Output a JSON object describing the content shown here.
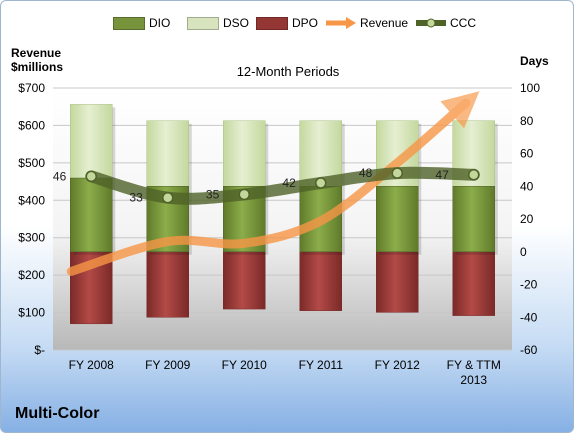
{
  "ui": {
    "brand_title": "Multi-Color"
  },
  "chart_data": {
    "type": "bar",
    "title": "12-Month Periods",
    "ylabel_left": "Revenue\n$millions",
    "ylabel_right": "Days",
    "categories": [
      "FY 2008",
      "FY 2009",
      "FY 2010",
      "FY 2011",
      "FY 2012",
      "FY & TTM\n2013"
    ],
    "left_axis": {
      "min": 0,
      "max": 700,
      "step": 100,
      "tick_labels": [
        "$-",
        "$100",
        "$200",
        "$300",
        "$400",
        "$500",
        "$600",
        "$700"
      ]
    },
    "right_axis": {
      "min": -60,
      "max": 100,
      "step": 20,
      "tick_labels": [
        "-60",
        "-40",
        "-20",
        "0",
        "20",
        "40",
        "60",
        "80",
        "100"
      ]
    },
    "grid": true,
    "legend_position": "top",
    "series": [
      {
        "name": "DIO",
        "kind": "stacked-bar-days",
        "color": "#77933c",
        "values": [
          45,
          40,
          40,
          40,
          40,
          40
        ]
      },
      {
        "name": "DSO",
        "kind": "stacked-bar-days",
        "color": "#d7e4bd",
        "values": [
          45,
          40,
          40,
          40,
          40,
          40
        ]
      },
      {
        "name": "DPO",
        "kind": "negative-bar-days",
        "color": "#943634",
        "values": [
          -44,
          -40,
          -35,
          -36,
          -37,
          -39
        ]
      },
      {
        "name": "Revenue",
        "kind": "line-revenue",
        "color": "#f79646",
        "values": [
          210,
          290,
          285,
          345,
          500,
          660
        ]
      },
      {
        "name": "CCC",
        "kind": "line-days",
        "color": "#4f6228",
        "values": [
          46,
          33,
          35,
          42,
          48,
          47
        ]
      }
    ],
    "data_labels": [
      "46",
      "33",
      "35",
      "42",
      "48",
      "47"
    ],
    "colors": {
      "dio": "#77933c",
      "dso": "#d7e4bd",
      "dpo": "#943634",
      "revenue": "#f79646",
      "ccc": "#4f6228"
    }
  }
}
